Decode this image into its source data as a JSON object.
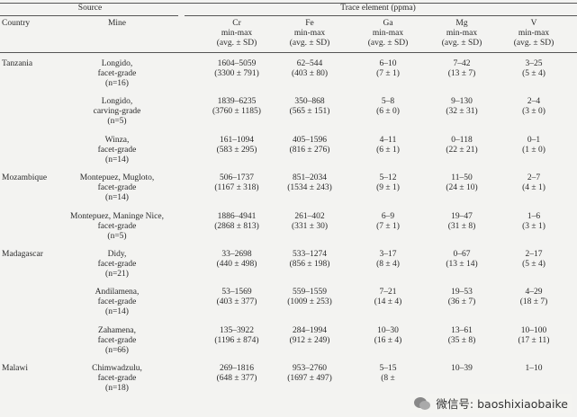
{
  "header": {
    "source": "Source",
    "trace": "Trace element (ppma)"
  },
  "columns": [
    {
      "label": "Country"
    },
    {
      "label": "Mine"
    },
    {
      "label": "Cr",
      "range": "min-max",
      "avg": "(avg. ± SD)"
    },
    {
      "label": "Fe",
      "range": "min-max",
      "avg": "(avg. ± SD)"
    },
    {
      "label": "Ga",
      "range": "min-max",
      "avg": "(avg. ± SD)"
    },
    {
      "label": "Mg",
      "range": "min-max",
      "avg": "(avg. ± SD)"
    },
    {
      "label": "V",
      "range": "min-max",
      "avg": "(avg. ± SD)"
    }
  ],
  "groups": [
    {
      "country": "Tanzania",
      "mines": [
        {
          "mine": [
            "Longido,",
            "facet-grade",
            "(n=16)"
          ],
          "cells": [
            [
              "1604–5059",
              "(3300 ± 791)"
            ],
            [
              "62–544",
              "(403 ± 80)"
            ],
            [
              "6–10",
              "(7 ± 1)"
            ],
            [
              "7–42",
              "(13 ± 7)"
            ],
            [
              "3–25",
              "(5 ± 4)"
            ]
          ]
        },
        {
          "mine": [
            "Longido,",
            "carving-grade",
            "(n=5)"
          ],
          "cells": [
            [
              "1839–6235",
              "(3760 ± 1185)"
            ],
            [
              "350–868",
              "(565 ± 151)"
            ],
            [
              "5–8",
              "(6 ± 0)"
            ],
            [
              "9–130",
              "(32 ± 31)"
            ],
            [
              "2–4",
              "(3 ± 0)"
            ]
          ]
        },
        {
          "mine": [
            "Winza,",
            "facet-grade",
            "(n=14)"
          ],
          "cells": [
            [
              "161–1094",
              "(583 ± 295)"
            ],
            [
              "405–1596",
              "(816 ± 276)"
            ],
            [
              "4–11",
              "(6 ± 1)"
            ],
            [
              "0–118",
              "(22 ± 21)"
            ],
            [
              "0–1",
              "(1 ± 0)"
            ]
          ]
        }
      ]
    },
    {
      "country": "Mozambique",
      "mines": [
        {
          "mine": [
            "Montepuez, Mugloto,",
            "facet-grade",
            "(n=14)"
          ],
          "cells": [
            [
              "506–1737",
              "(1167 ± 318)"
            ],
            [
              "851–2034",
              "(1534 ± 243)"
            ],
            [
              "5–12",
              "(9 ± 1)"
            ],
            [
              "11–50",
              "(24 ± 10)"
            ],
            [
              "2–7",
              "(4 ± 1)"
            ]
          ]
        },
        {
          "mine": [
            "Montepuez, Maninge Nice,",
            "facet-grade",
            "(n=5)"
          ],
          "cells": [
            [
              "1886–4941",
              "(2868 ± 813)"
            ],
            [
              "261–402",
              "(331 ± 30)"
            ],
            [
              "6–9",
              "(7 ± 1)"
            ],
            [
              "19–47",
              "(31 ± 8)"
            ],
            [
              "1–6",
              "(3 ± 1)"
            ]
          ]
        }
      ]
    },
    {
      "country": "Madagascar",
      "mines": [
        {
          "mine": [
            "Didy,",
            "facet-grade",
            "(n=21)"
          ],
          "cells": [
            [
              "33–2698",
              "(440 ± 498)"
            ],
            [
              "533–1274",
              "(856 ± 198)"
            ],
            [
              "3–17",
              "(8 ± 4)"
            ],
            [
              "0–67",
              "(13 ± 14)"
            ],
            [
              "2–17",
              "(5 ± 4)"
            ]
          ]
        },
        {
          "mine": [
            "Andilamena,",
            "facet-grade",
            "(n=14)"
          ],
          "cells": [
            [
              "53–1569",
              "(403 ± 377)"
            ],
            [
              "559–1559",
              "(1009 ± 253)"
            ],
            [
              "7–21",
              "(14 ± 4)"
            ],
            [
              "19–53",
              "(36 ± 7)"
            ],
            [
              "4–29",
              "(18 ± 7)"
            ]
          ]
        },
        {
          "mine": [
            "Zahamena,",
            "facet-grade",
            "(n=66)"
          ],
          "cells": [
            [
              "135–3922",
              "(1196 ± 874)"
            ],
            [
              "284–1994",
              "(912 ± 249)"
            ],
            [
              "10–30",
              "(16 ± 4)"
            ],
            [
              "13–61",
              "(35 ± 8)"
            ],
            [
              "10–100",
              "(17 ± 11)"
            ]
          ]
        }
      ]
    },
    {
      "country": "Malawi",
      "mines": [
        {
          "mine": [
            "Chimwadzulu,",
            "facet-grade",
            "(n=18)"
          ],
          "cells": [
            [
              "269–1816",
              "(648 ± 377)"
            ],
            [
              "953–2760",
              "(1697 ± 497)"
            ],
            [
              "5–15",
              "(8 ±"
            ],
            [
              "10–39",
              ""
            ],
            [
              "1–10",
              ""
            ]
          ]
        }
      ]
    }
  ],
  "watermark": "微信号: baoshixiaobaike"
}
